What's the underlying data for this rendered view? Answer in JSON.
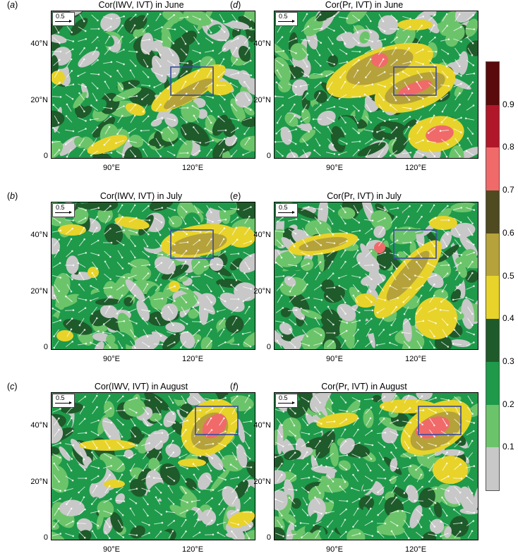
{
  "panels": [
    {
      "id": "a",
      "label": "a",
      "title": "Cor(IWV, IVT) in June",
      "ref": "0.5",
      "yticks": [
        "40°N",
        "20°N",
        "0"
      ],
      "xticks": [
        "90°E",
        "120°E"
      ]
    },
    {
      "id": "b",
      "label": "b",
      "title": "Cor(IWV, IVT) in July",
      "ref": "0.5",
      "yticks": [
        "40°N",
        "20°N",
        "0"
      ],
      "xticks": [
        "90°E",
        "120°E"
      ]
    },
    {
      "id": "c",
      "label": "c",
      "title": "Cor(IWV, IVT) in August",
      "ref": "0.5",
      "yticks": [
        "40°N",
        "20°N",
        "0"
      ],
      "xticks": [
        "90°E",
        "120°E"
      ]
    },
    {
      "id": "d",
      "label": "d",
      "title": "Cor(Pr, IVT) in June",
      "ref": "0.5",
      "yticks": [
        "40°N",
        "20°N",
        "0"
      ],
      "xticks": [
        "90°E",
        "120°E"
      ]
    },
    {
      "id": "e",
      "label": "e",
      "title": "Cor(Pr, IVT) in July",
      "ref": "0.5",
      "yticks": [
        "40°N",
        "20°N",
        "0"
      ],
      "xticks": [
        "90°E",
        "120°E"
      ]
    },
    {
      "id": "f",
      "label": "f",
      "title": "Cor(Pr, IVT) in August",
      "ref": "0.5",
      "yticks": [
        "40°N",
        "20°N",
        "0"
      ],
      "xticks": [
        "90°E",
        "120°E"
      ]
    }
  ],
  "colorbar": {
    "labels": [
      "0.9",
      "0.8",
      "0.7",
      "0.6",
      "0.5",
      "0.4",
      "0.3",
      "0.2",
      "0.1"
    ],
    "colors": [
      "#5a0a0a",
      "#b0182a",
      "#f06a6a",
      "#4f4a1f",
      "#b5a23a",
      "#e8d32a",
      "#1f5a2a",
      "#1e9a4a",
      "#6cc46a",
      "#c8c8c8"
    ]
  },
  "palette": {
    "grey": "#c8c8c8",
    "light_green": "#6cc46a",
    "mid_green": "#1e9a4a",
    "dark_green": "#1f5a2a",
    "yellow": "#e8d32a",
    "olive": "#b5a23a",
    "brown": "#4f4a1f",
    "pink": "#f06a6a",
    "box": "#3a4aa0"
  }
}
